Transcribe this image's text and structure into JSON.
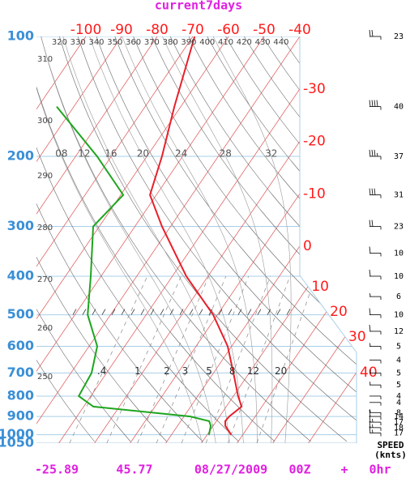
{
  "chart_data": {
    "type": "skewt",
    "title": "current7days",
    "ylim": [
      100,
      1050
    ],
    "log_y": true,
    "yticks": [
      100,
      200,
      300,
      400,
      500,
      600,
      700,
      800,
      900,
      1000,
      1050
    ],
    "xticks": [
      -100,
      -90,
      -80,
      -70,
      -60,
      -50,
      -40,
      -30,
      -20,
      -10,
      0,
      10,
      20,
      30,
      40
    ],
    "dry_adiabats": [
      250,
      260,
      270,
      280,
      290,
      300,
      310,
      320,
      330,
      340,
      350,
      360,
      370,
      380,
      390,
      400,
      410,
      420,
      430,
      440
    ],
    "moist_adiabats": [
      {
        "value": 8,
        "label": "08"
      },
      12,
      16,
      20,
      24,
      28,
      32
    ],
    "mixing_ratios": [
      {
        "value": 0.4,
        "label": ".4"
      },
      1,
      2,
      3,
      5,
      8,
      12,
      20
    ],
    "pressure_levels": [
      100,
      150,
      200,
      250,
      300,
      400,
      500,
      600,
      700,
      800,
      850,
      900,
      925,
      950,
      1000
    ],
    "series": [
      {
        "color": "#e8202a",
        "values": [
          -69.5,
          -61.8,
          -55.8,
          -51.8,
          -42.4,
          -26.1,
          -11.2,
          -1.1,
          5.6,
          11.3,
          14.3,
          12.7,
          12.5,
          13.4,
          16.7
        ]
      },
      {
        "color": "#1ea51e",
        "values": [
          null,
          -94.8,
          -74.0,
          -59.3,
          -61.7,
          -52.9,
          -46.4,
          -37.7,
          -34.2,
          -33.4,
          -27.3,
          1.8,
          8.0,
          9.3,
          10.5
        ]
      }
    ],
    "winds": {
      "levels": [
        100,
        150,
        200,
        250,
        300,
        350,
        400,
        450,
        500,
        550,
        600,
        650,
        700,
        750,
        800,
        830,
        880,
        900,
        930,
        960,
        990
      ],
      "speeds": [
        23,
        40,
        37,
        31,
        23,
        10,
        10,
        6,
        10,
        12,
        5,
        4,
        5,
        5,
        4,
        4,
        8,
        14,
        17,
        18,
        17
      ]
    },
    "speed_label": "SPEED",
    "speed_units": "(knts)",
    "latitude": -25.89,
    "longitude": 45.77,
    "date": "08/27/2009",
    "time": "00Z",
    "plus": "+",
    "forecast": "0hr"
  }
}
